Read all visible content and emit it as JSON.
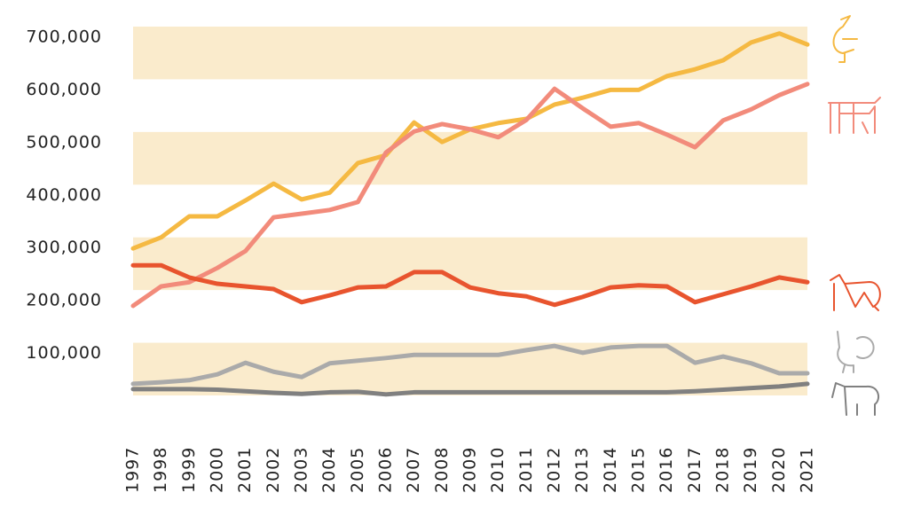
{
  "chart_data": {
    "type": "line",
    "categories": [
      "1997",
      "1998",
      "1999",
      "2000",
      "2001",
      "2002",
      "2003",
      "2004",
      "2005",
      "2006",
      "2007",
      "2008",
      "2009",
      "2010",
      "2011",
      "2012",
      "2013",
      "2014",
      "2015",
      "2016",
      "2017",
      "2018",
      "2019",
      "2020",
      "2021"
    ],
    "series": [
      {
        "color": "#f5b942",
        "values": [
          279000,
          300000,
          340000,
          340000,
          370000,
          402000,
          372000,
          385000,
          441000,
          456000,
          518000,
          481000,
          505000,
          517000,
          525000,
          552000,
          565000,
          580000,
          580000,
          606000,
          619000,
          636000,
          670000,
          687000,
          666000
        ]
      },
      {
        "color": "#f28b7b",
        "values": [
          170000,
          207000,
          215000,
          242000,
          274000,
          338000,
          345000,
          352000,
          367000,
          461000,
          501000,
          515000,
          505000,
          490000,
          523000,
          582000,
          545000,
          510000,
          517000,
          495000,
          471000,
          522000,
          543000,
          570000,
          591000
        ]
      },
      {
        "color": "#e8542e",
        "values": [
          247000,
          247000,
          224000,
          212000,
          207000,
          202000,
          177000,
          190000,
          205000,
          207000,
          234000,
          234000,
          205000,
          194000,
          188000,
          172000,
          187000,
          205000,
          209000,
          207000,
          177000,
          192000,
          207000,
          224000,
          215000
        ]
      },
      {
        "color": "#aaaaaa",
        "values": [
          22000,
          25000,
          29000,
          40000,
          62000,
          45000,
          35000,
          61000,
          66000,
          71000,
          77000,
          77000,
          77000,
          77000,
          86000,
          94000,
          81000,
          91000,
          94000,
          94000,
          62000,
          74000,
          61000,
          42000,
          42000
        ]
      },
      {
        "color": "#808080",
        "values": [
          12000,
          12000,
          12000,
          11000,
          8000,
          5000,
          3000,
          6000,
          7000,
          2000,
          6000,
          6000,
          6000,
          6000,
          6000,
          6000,
          6000,
          6000,
          6000,
          6000,
          8000,
          11000,
          14000,
          17000,
          22000
        ]
      }
    ],
    "ylim": [
      0,
      700000
    ],
    "yticks": [
      {
        "value": 100000,
        "label": "100,000"
      },
      {
        "value": 200000,
        "label": "200,000"
      },
      {
        "value": 300000,
        "label": "300,000"
      },
      {
        "value": 400000,
        "label": "400,000"
      },
      {
        "value": 500000,
        "label": "500,000"
      },
      {
        "value": 600000,
        "label": "600,000"
      },
      {
        "value": 700000,
        "label": "700,000"
      }
    ],
    "grid": true,
    "band_color": "#faebcc"
  }
}
